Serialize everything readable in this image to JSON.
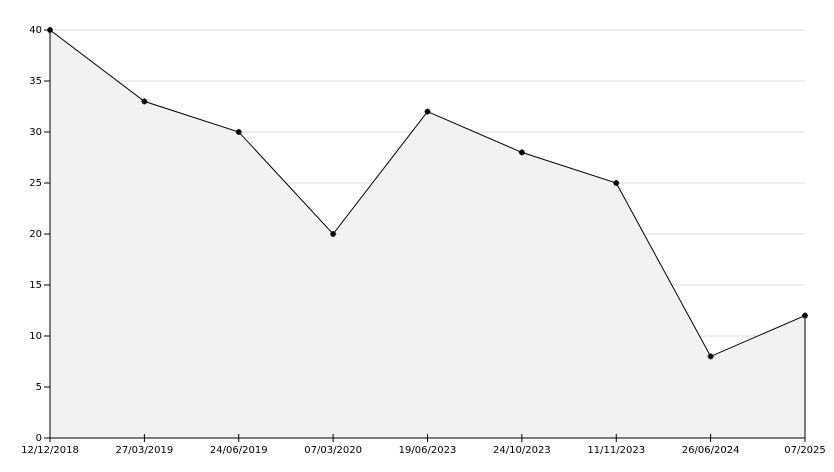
{
  "chart_data": {
    "type": "area",
    "categories": [
      "12/12/2018",
      "27/03/2019",
      "24/06/2019",
      "07/03/2020",
      "19/06/2023",
      "24/10/2023",
      "11/11/2023",
      "26/06/2024",
      "07/2025"
    ],
    "values": [
      40,
      33,
      30,
      20,
      32,
      28,
      25,
      8,
      12
    ],
    "color": "#000000",
    "fill": "#f2f2f2",
    "ylim": [
      0,
      40
    ],
    "yticks": [
      0,
      5,
      10,
      15,
      20,
      25,
      30,
      35,
      40
    ],
    "grid": true
  }
}
